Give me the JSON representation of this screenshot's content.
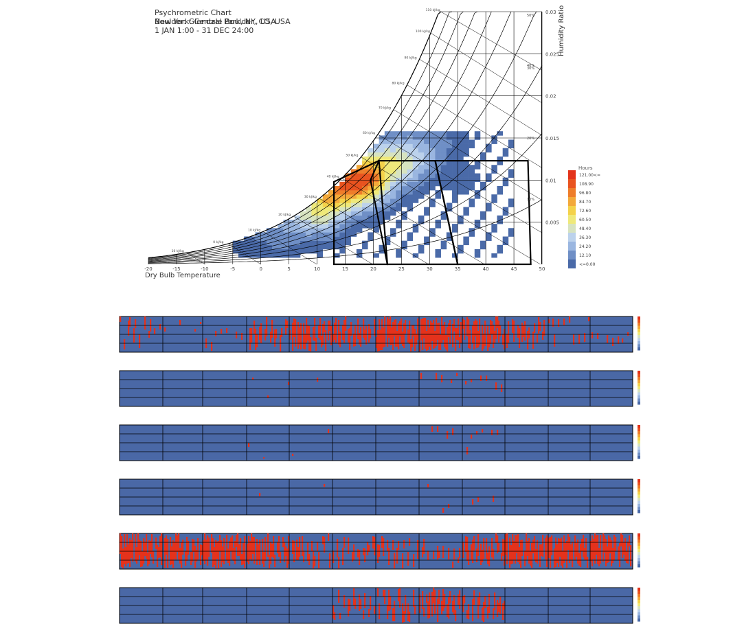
{
  "header": {
    "title": "Psychrometric Chart",
    "location_line_a": "Boulder: Glendale Boulder, CO, USA",
    "location_line_b": "New York: Central Park, NY, USA",
    "period": "1 JAN 1:00 - 31 DEC 24:00"
  },
  "colors": {
    "bin_scale": [
      "#4a6aa8",
      "#6f8fc6",
      "#9ab6e0",
      "#bcd2ec",
      "#d7e3c0",
      "#efe97a",
      "#f4d24a",
      "#f3a93a",
      "#ee7d2a",
      "#e9531f",
      "#e3331a"
    ],
    "strip_background": "#4a68a6",
    "strip_highlight": "#e4321c",
    "grid_line": "#000000"
  },
  "chart_data": [
    {
      "type": "heatmap",
      "title": "Psychrometric Chart",
      "xlabel": "Dry Bulb Temperature",
      "ylabel": "Humidity Ratio",
      "xlim": [
        -20,
        50
      ],
      "ylim": [
        0,
        0.03
      ],
      "x_ticks": [
        "-20",
        "-15",
        "-10",
        "-5",
        "0",
        "5",
        "10",
        "15",
        "20",
        "25",
        "30",
        "35",
        "40",
        "45",
        "50"
      ],
      "y_ticks": [
        "0.005",
        "0.01",
        "0.015",
        "0.02",
        "0.025",
        "0.03"
      ],
      "enthalpy_labels": [
        "10 kJ/kg",
        "0 kJ/kg",
        "10 kJ/kg",
        "20 kJ/kg",
        "30 kJ/kg",
        "40 kJ/kg",
        "50 kJ/kg",
        "60 kJ/kg",
        "70 kJ/kg",
        "80 kJ/kg",
        "90 kJ/kg",
        "100 kJ/kg",
        "110 kJ/kg"
      ],
      "rh_labels": [
        "10%",
        "20%",
        "30%",
        "40%",
        "50%"
      ],
      "legend": {
        "title": "Hours",
        "entries": [
          "121.00<=",
          "108.90",
          "96.80",
          "84.70",
          "72.60",
          "60.50",
          "48.40",
          "36.30",
          "24.20",
          "12.10",
          "<=0.00"
        ],
        "placement": "right"
      },
      "comfort_polygons": [
        [
          [
            13,
            0.0
          ],
          [
            13,
            0.0098
          ],
          [
            21,
            0.0123
          ],
          [
            22.5,
            0.0
          ]
        ],
        [
          [
            21,
            0.0123
          ],
          [
            19.5,
            0.01
          ],
          [
            22.5,
            0.0
          ],
          [
            35,
            0.0
          ],
          [
            31,
            0.0123
          ]
        ],
        [
          [
            31,
            0.0123
          ],
          [
            35,
            0.0
          ],
          [
            48,
            0.0
          ],
          [
            47.5,
            0.0123
          ]
        ]
      ],
      "bins": [
        {
          "t": -3,
          "w": 0.003,
          "h": 8
        },
        {
          "t": 0,
          "w": 0.0035,
          "h": 14
        },
        {
          "t": 3,
          "w": 0.004,
          "h": 22
        },
        {
          "t": 5,
          "w": 0.005,
          "h": 30
        },
        {
          "t": 8,
          "w": 0.006,
          "h": 55
        },
        {
          "t": 10,
          "w": 0.0065,
          "h": 70
        },
        {
          "t": 12,
          "w": 0.008,
          "h": 96
        },
        {
          "t": 14,
          "w": 0.009,
          "h": 110
        },
        {
          "t": 16,
          "w": 0.0095,
          "h": 121
        },
        {
          "t": 18,
          "w": 0.01,
          "h": 115
        },
        {
          "t": 20,
          "w": 0.011,
          "h": 85
        },
        {
          "t": 22,
          "w": 0.0115,
          "h": 72
        },
        {
          "t": 24,
          "w": 0.012,
          "h": 60
        },
        {
          "t": 26,
          "w": 0.0125,
          "h": 45
        },
        {
          "t": 28,
          "w": 0.013,
          "h": 30
        },
        {
          "t": 30,
          "w": 0.014,
          "h": 18
        },
        {
          "t": 32,
          "w": 0.015,
          "h": 10
        },
        {
          "t": 35,
          "w": 0.01,
          "h": 6
        }
      ]
    },
    {
      "type": "heatmap",
      "title": "",
      "series": [
        {
          "name": "",
          "values": [
            0.4,
            0.1,
            0.2,
            0.6,
            0.8,
            0.7,
            0.9,
            0.95,
            0.85,
            0.6,
            0.3,
            0.2
          ]
        },
        {
          "name": "",
          "values": [
            0.0,
            0.0,
            0.0,
            0.05,
            0.05,
            0.0,
            0.0,
            0.15,
            0.2,
            0.0,
            0.0,
            0.0
          ]
        },
        {
          "name": "",
          "values": [
            0.0,
            0.0,
            0.0,
            0.05,
            0.05,
            0.0,
            0.0,
            0.15,
            0.2,
            0.0,
            0.0,
            0.0
          ]
        },
        {
          "name": "",
          "values": [
            0.0,
            0.0,
            0.0,
            0.03,
            0.03,
            0.0,
            0.0,
            0.1,
            0.1,
            0.0,
            0.0,
            0.0
          ]
        },
        {
          "name": "",
          "values": [
            0.9,
            0.85,
            0.9,
            0.8,
            0.6,
            0.5,
            0.5,
            0.4,
            0.7,
            0.9,
            0.9,
            0.9
          ]
        },
        {
          "name": "",
          "values": [
            0.0,
            0.0,
            0.0,
            0.0,
            0.0,
            0.5,
            0.6,
            0.7,
            0.6,
            0.0,
            0.0,
            0.0
          ]
        }
      ]
    }
  ]
}
